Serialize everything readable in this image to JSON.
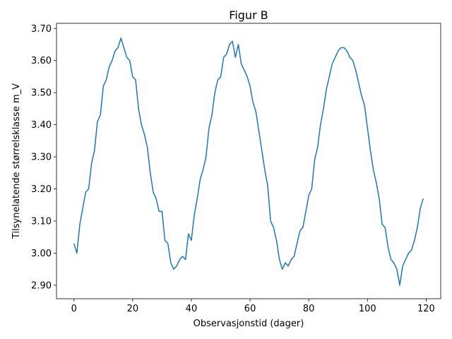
{
  "chart_data": {
    "type": "line",
    "title": "Figur B",
    "x_label": "Observasjonstid (dager)",
    "y_label": "Tilsynelatende størrelsklasse m_V",
    "x": [
      0,
      1,
      2,
      3,
      4,
      5,
      6,
      7,
      8,
      9,
      10,
      11,
      12,
      13,
      14,
      15,
      16,
      17,
      18,
      19,
      20,
      21,
      22,
      23,
      24,
      25,
      26,
      27,
      28,
      29,
      30,
      31,
      32,
      33,
      34,
      35,
      36,
      37,
      38,
      39,
      40,
      41,
      42,
      43,
      44,
      45,
      46,
      47,
      48,
      49,
      50,
      51,
      52,
      53,
      54,
      55,
      56,
      57,
      58,
      59,
      60,
      61,
      62,
      63,
      64,
      65,
      66,
      67,
      68,
      69,
      70,
      71,
      72,
      73,
      74,
      75,
      76,
      77,
      78,
      79,
      80,
      81,
      82,
      83,
      84,
      85,
      86,
      87,
      88,
      89,
      90,
      91,
      92,
      93,
      94,
      95,
      96,
      97,
      98,
      99,
      100,
      101,
      102,
      103,
      104,
      105,
      106,
      107,
      108,
      109,
      110,
      111,
      112,
      113,
      114,
      115,
      116,
      117,
      118,
      119
    ],
    "series": [
      {
        "color": "#1f77b4",
        "values": [
          3.03,
          3.0,
          3.09,
          3.14,
          3.19,
          3.2,
          3.28,
          3.32,
          3.41,
          3.43,
          3.52,
          3.54,
          3.58,
          3.6,
          3.63,
          3.64,
          3.67,
          3.64,
          3.61,
          3.6,
          3.55,
          3.54,
          3.45,
          3.4,
          3.37,
          3.33,
          3.25,
          3.19,
          3.17,
          3.13,
          3.13,
          3.04,
          3.03,
          2.97,
          2.95,
          2.96,
          2.98,
          2.99,
          2.98,
          3.06,
          3.04,
          3.12,
          3.17,
          3.23,
          3.26,
          3.3,
          3.39,
          3.43,
          3.5,
          3.54,
          3.55,
          3.61,
          3.62,
          3.65,
          3.66,
          3.61,
          3.65,
          3.59,
          3.57,
          3.55,
          3.52,
          3.47,
          3.44,
          3.38,
          3.32,
          3.26,
          3.21,
          3.1,
          3.08,
          3.04,
          2.98,
          2.95,
          2.97,
          2.96,
          2.98,
          2.99,
          3.03,
          3.07,
          3.08,
          3.13,
          3.18,
          3.2,
          3.29,
          3.33,
          3.4,
          3.45,
          3.51,
          3.55,
          3.59,
          3.61,
          3.63,
          3.64,
          3.64,
          3.63,
          3.61,
          3.6,
          3.57,
          3.53,
          3.49,
          3.46,
          3.39,
          3.32,
          3.26,
          3.22,
          3.17,
          3.09,
          3.08,
          3.02,
          2.98,
          2.97,
          2.95,
          2.9,
          2.96,
          2.98,
          3.0,
          3.01,
          3.04,
          3.08,
          3.14,
          3.17
        ]
      }
    ],
    "xlim": [
      -5.95,
      124.95
    ],
    "xticks": [
      0,
      20,
      40,
      60,
      80,
      100,
      120
    ],
    "ylim": [
      2.858,
      3.716
    ],
    "yticks": [
      {
        "value": 2.9,
        "label": "2.90"
      },
      {
        "value": 3.0,
        "label": "3.00"
      },
      {
        "value": 3.1,
        "label": "3.10"
      },
      {
        "value": 3.2,
        "label": "3.20"
      },
      {
        "value": 3.3,
        "label": "3.30"
      },
      {
        "value": 3.4,
        "label": "3.40"
      },
      {
        "value": 3.5,
        "label": "3.50"
      },
      {
        "value": 3.6,
        "label": "3.60"
      },
      {
        "value": 3.7,
        "label": "3.70"
      }
    ],
    "grid": false
  }
}
